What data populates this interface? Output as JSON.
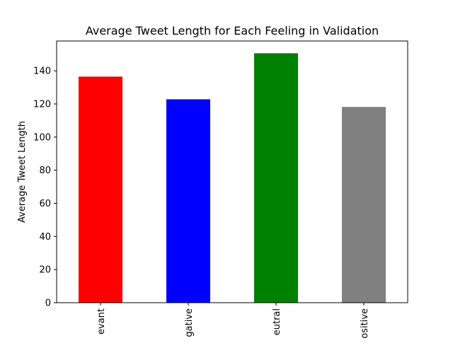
{
  "chart_data": {
    "type": "bar",
    "title": "Average Tweet Length for Each Feeling in Validation",
    "xlabel": "",
    "ylabel": "Average Tweet Length",
    "categories": [
      "evant",
      "gative",
      "eutral",
      "ositive"
    ],
    "values": [
      136.5,
      122.8,
      150.6,
      118.2
    ],
    "colors": [
      "#ff0000",
      "#0000ff",
      "#008000",
      "#808080"
    ],
    "ylim": [
      0,
      158
    ],
    "yticks": [
      0,
      20,
      40,
      60,
      80,
      100,
      120,
      140
    ],
    "grid": false,
    "legend": "none"
  }
}
